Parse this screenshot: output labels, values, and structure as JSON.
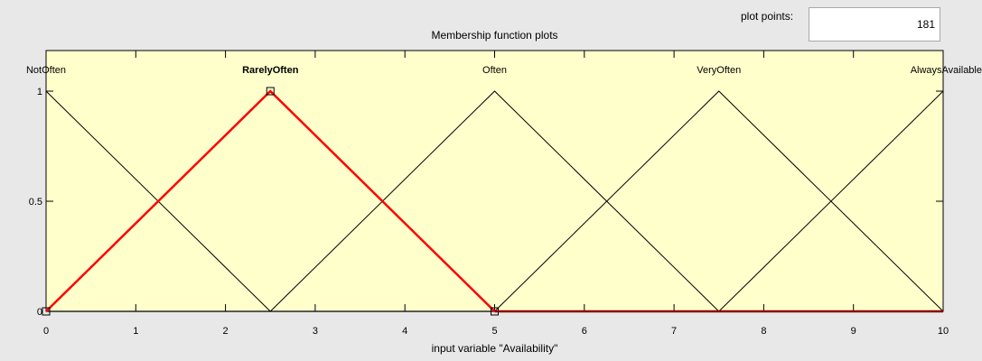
{
  "plot_points": {
    "label": "plot points:",
    "value": "181"
  },
  "title": "Membership function plots",
  "xlabel": "input variable \"Availability\"",
  "colors": {
    "plot_bg": "#ffffcc",
    "selected": "#ff0000",
    "line": "#000000",
    "window_bg": "#e8e8e8"
  },
  "chart_data": {
    "type": "line",
    "title": "Membership function plots",
    "xlabel": "input variable \"Availability\"",
    "ylabel": "",
    "xlim": [
      0,
      10
    ],
    "ylim": [
      0,
      1
    ],
    "xticks": [
      "0",
      "1",
      "2",
      "3",
      "4",
      "5",
      "6",
      "7",
      "8",
      "9",
      "10"
    ],
    "yticks": [
      "0",
      "0.5",
      "1"
    ],
    "selected": "RarelyOften",
    "series": [
      {
        "name": "NotOften",
        "points": [
          [
            0,
            1
          ],
          [
            2.5,
            0
          ]
        ]
      },
      {
        "name": "RarelyOften",
        "points": [
          [
            0,
            0
          ],
          [
            2.5,
            1
          ],
          [
            5,
            0
          ]
        ]
      },
      {
        "name": "Often",
        "points": [
          [
            2.5,
            0
          ],
          [
            5,
            1
          ],
          [
            7.5,
            0
          ]
        ]
      },
      {
        "name": "VeryOften",
        "points": [
          [
            5,
            0
          ],
          [
            7.5,
            1
          ],
          [
            10,
            0
          ]
        ]
      },
      {
        "name": "AlwaysAvailable",
        "points": [
          [
            7.5,
            0
          ],
          [
            10,
            1
          ]
        ]
      }
    ]
  }
}
